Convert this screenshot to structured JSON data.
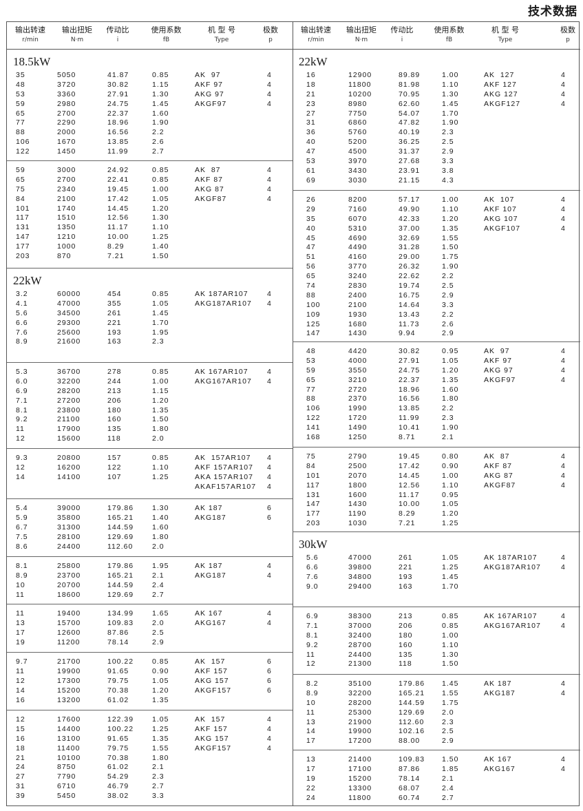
{
  "title": "技术数据",
  "header": [
    {
      "zh": "输出转速",
      "unit": "r/min"
    },
    {
      "zh": "输出扭矩",
      "unit": "N·m"
    },
    {
      "zh": "传动比",
      "unit": "i"
    },
    {
      "zh": "使用系数",
      "unit": "fB"
    },
    {
      "zh": "机 型 号",
      "unit": "Type"
    },
    {
      "zh": "极数",
      "unit": "p"
    }
  ],
  "left": [
    {
      "title": "18.5kW",
      "rows": [
        [
          "35",
          "5050",
          "41.87",
          "0.85"
        ],
        [
          "48",
          "3720",
          "30.82",
          "1.15"
        ],
        [
          "53",
          "3360",
          "27.91",
          "1.30"
        ],
        [
          "59",
          "2980",
          "24.75",
          "1.45"
        ],
        [
          "65",
          "2700",
          "22.37",
          "1.60"
        ],
        [
          "77",
          "2290",
          "18.96",
          "1.90"
        ],
        [
          "88",
          "2000",
          "16.56",
          "2.2"
        ],
        [
          "106",
          "1670",
          "13.85",
          "2.6"
        ],
        [
          "122",
          "1450",
          "11.99",
          "2.7"
        ]
      ],
      "types": [
        [
          "AK  97",
          "4"
        ],
        [
          "AKF 97",
          "4"
        ],
        [
          "AKG 97",
          "4"
        ],
        [
          "AKGF97",
          "4"
        ]
      ]
    },
    {
      "rows": [
        [
          "59",
          "3000",
          "24.92",
          "0.85"
        ],
        [
          "65",
          "2700",
          "22.41",
          "0.85"
        ],
        [
          "75",
          "2340",
          "19.45",
          "1.00"
        ],
        [
          "84",
          "2100",
          "17.42",
          "1.05"
        ],
        [
          "101",
          "1740",
          "14.45",
          "1.20"
        ],
        [
          "117",
          "1510",
          "12.56",
          "1.30"
        ],
        [
          "131",
          "1350",
          "11.17",
          "1.10"
        ],
        [
          "147",
          "1210",
          "10.00",
          "1.25"
        ],
        [
          "177",
          "1000",
          "8.29",
          "1.40"
        ],
        [
          "203",
          "870",
          "7.21",
          "1.50"
        ]
      ],
      "types": [
        [
          "AK  87",
          "4"
        ],
        [
          "AKF 87",
          "4"
        ],
        [
          "AKG 87",
          "4"
        ],
        [
          "AKGF87",
          "4"
        ]
      ]
    },
    {
      "title": "22kW",
      "rows": [
        [
          "3.2",
          "60000",
          "454",
          "0.85"
        ],
        [
          "4.1",
          "47000",
          "355",
          "1.05"
        ],
        [
          "5.6",
          "34500",
          "261",
          "1.45"
        ],
        [
          "6.6",
          "29300",
          "221",
          "1.70"
        ],
        [
          "7.6",
          "25600",
          "193",
          "1.95"
        ],
        [
          "8.9",
          "21600",
          "163",
          "2.3"
        ]
      ],
      "types": [
        [
          "AK 187AR107",
          "4"
        ],
        [
          "AKG187AR107",
          "4"
        ]
      ]
    },
    {
      "rows": [
        [
          "5.3",
          "36700",
          "278",
          "0.85"
        ],
        [
          "6.0",
          "32200",
          "244",
          "1.00"
        ],
        [
          "6.9",
          "28200",
          "213",
          "1.15"
        ],
        [
          "7.1",
          "27200",
          "206",
          "1.20"
        ],
        [
          "8.1",
          "23800",
          "180",
          "1.35"
        ],
        [
          "9.2",
          "21100",
          "160",
          "1.50"
        ],
        [
          "11",
          "17900",
          "135",
          "1.80"
        ],
        [
          "12",
          "15600",
          "118",
          "2.0"
        ]
      ],
      "types": [
        [
          "AK 167AR107",
          "4"
        ],
        [
          "AKG167AR107",
          "4"
        ]
      ]
    },
    {
      "rows": [
        [
          "9.3",
          "20800",
          "157",
          "0.85"
        ],
        [
          "12",
          "16200",
          "122",
          "1.10"
        ],
        [
          "14",
          "14100",
          "107",
          "1.25"
        ]
      ],
      "types": [
        [
          "AK  157AR107",
          "4"
        ],
        [
          "AKF 157AR107",
          "4"
        ],
        [
          "AKA 157AR107",
          "4"
        ],
        [
          "AKAF157AR107",
          "4"
        ]
      ]
    },
    {
      "rows": [
        [
          "5.4",
          "39000",
          "179.86",
          "1.30"
        ],
        [
          "5.9",
          "35800",
          "165.21",
          "1.40"
        ],
        [
          "6.7",
          "31300",
          "144.59",
          "1.60"
        ],
        [
          "7.5",
          "28100",
          "129.69",
          "1.80"
        ],
        [
          "8.6",
          "24400",
          "112.60",
          "2.0"
        ]
      ],
      "types": [
        [
          "AK 187",
          "6"
        ],
        [
          "AKG187",
          "6"
        ]
      ]
    },
    {
      "rows": [
        [
          "8.1",
          "25800",
          "179.86",
          "1.95"
        ],
        [
          "8.9",
          "23700",
          "165.21",
          "2.1"
        ],
        [
          "10",
          "20700",
          "144.59",
          "2.4"
        ],
        [
          "11",
          "18600",
          "129.69",
          "2.7"
        ]
      ],
      "types": [
        [
          "AK 187",
          "4"
        ],
        [
          "AKG187",
          "4"
        ]
      ]
    },
    {
      "rows": [
        [
          "11",
          "19400",
          "134.99",
          "1.65"
        ],
        [
          "13",
          "15700",
          "109.83",
          "2.0"
        ],
        [
          "17",
          "12600",
          "87.86",
          "2.5"
        ],
        [
          "19",
          "11200",
          "78.14",
          "2.9"
        ]
      ],
      "types": [
        [
          "AK 167",
          "4"
        ],
        [
          "AKG167",
          "4"
        ]
      ]
    },
    {
      "rows": [
        [
          "9.7",
          "21700",
          "100.22",
          "0.85"
        ],
        [
          "11",
          "19900",
          "91.65",
          "0.90"
        ],
        [
          "12",
          "17300",
          "79.75",
          "1.05"
        ],
        [
          "14",
          "15200",
          "70.38",
          "1.20"
        ],
        [
          "16",
          "13200",
          "61.02",
          "1.35"
        ]
      ],
      "types": [
        [
          "AK  157",
          "6"
        ],
        [
          "AKF 157",
          "6"
        ],
        [
          "AKG 157",
          "6"
        ],
        [
          "AKGF157",
          "6"
        ]
      ]
    },
    {
      "rows": [
        [
          "12",
          "17600",
          "122.39",
          "1.05"
        ],
        [
          "15",
          "14400",
          "100.22",
          "1.25"
        ],
        [
          "16",
          "13100",
          "91.65",
          "1.35"
        ],
        [
          "18",
          "11400",
          "79.75",
          "1.55"
        ],
        [
          "21",
          "10100",
          "70.38",
          "1.80"
        ],
        [
          "24",
          "8750",
          "61.02",
          "2.1"
        ],
        [
          "27",
          "7790",
          "54.29",
          "2.3"
        ],
        [
          "31",
          "6710",
          "46.79",
          "2.7"
        ],
        [
          "39",
          "5450",
          "38.02",
          "3.3"
        ]
      ],
      "types": [
        [
          "AK  157",
          "4"
        ],
        [
          "AKF 157",
          "4"
        ],
        [
          "AKG 157",
          "4"
        ],
        [
          "AKGF157",
          "4"
        ]
      ]
    }
  ],
  "right": [
    {
      "title": "22kW",
      "rows": [
        [
          "16",
          "12900",
          "89.89",
          "1.00"
        ],
        [
          "18",
          "11800",
          "81.98",
          "1.10"
        ],
        [
          "21",
          "10200",
          "70.95",
          "1.30"
        ],
        [
          "23",
          "8980",
          "62.60",
          "1.45"
        ],
        [
          "27",
          "7750",
          "54.07",
          "1.70"
        ],
        [
          "31",
          "6860",
          "47.82",
          "1.90"
        ],
        [
          "36",
          "5760",
          "40.19",
          "2.3"
        ],
        [
          "40",
          "5200",
          "36.25",
          "2.5"
        ],
        [
          "47",
          "4500",
          "31.37",
          "2.9"
        ],
        [
          "53",
          "3970",
          "27.68",
          "3.3"
        ],
        [
          "61",
          "3430",
          "23.91",
          "3.8"
        ],
        [
          "69",
          "3030",
          "21.15",
          "4.3"
        ]
      ],
      "types": [
        [
          "AK  127",
          "4"
        ],
        [
          "AKF 127",
          "4"
        ],
        [
          "AKG 127",
          "4"
        ],
        [
          "AKGF127",
          "4"
        ]
      ]
    },
    {
      "rows": [
        [
          "26",
          "8200",
          "57.17",
          "1.00"
        ],
        [
          "29",
          "7160",
          "49.90",
          "1.10"
        ],
        [
          "35",
          "6070",
          "42.33",
          "1.20"
        ],
        [
          "40",
          "5310",
          "37.00",
          "1.35"
        ],
        [
          "45",
          "4690",
          "32.69",
          "1.55"
        ],
        [
          "47",
          "4490",
          "31.28",
          "1.50"
        ],
        [
          "51",
          "4160",
          "29.00",
          "1.75"
        ],
        [
          "56",
          "3770",
          "26.32",
          "1.90"
        ],
        [
          "65",
          "3240",
          "22.62",
          "2.2"
        ],
        [
          "74",
          "2830",
          "19.74",
          "2.5"
        ],
        [
          "88",
          "2400",
          "16.75",
          "2.9"
        ],
        [
          "100",
          "2100",
          "14.64",
          "3.3"
        ],
        [
          "109",
          "1930",
          "13.43",
          "2.2"
        ],
        [
          "125",
          "1680",
          "11.73",
          "2.6"
        ],
        [
          "147",
          "1430",
          "9.94",
          "2.9"
        ]
      ],
      "types": [
        [
          "AK  107",
          "4"
        ],
        [
          "AKF 107",
          "4"
        ],
        [
          "AKG 107",
          "4"
        ],
        [
          "AKGF107",
          "4"
        ]
      ]
    },
    {
      "rows": [
        [
          "48",
          "4420",
          "30.82",
          "0.95"
        ],
        [
          "53",
          "4000",
          "27.91",
          "1.05"
        ],
        [
          "59",
          "3550",
          "24.75",
          "1.20"
        ],
        [
          "65",
          "3210",
          "22.37",
          "1.35"
        ],
        [
          "77",
          "2720",
          "18.96",
          "1.60"
        ],
        [
          "88",
          "2370",
          "16.56",
          "1.80"
        ],
        [
          "106",
          "1990",
          "13.85",
          "2.2"
        ],
        [
          "122",
          "1720",
          "11.99",
          "2.3"
        ],
        [
          "141",
          "1490",
          "10.41",
          "1.90"
        ],
        [
          "168",
          "1250",
          "8.71",
          "2.1"
        ]
      ],
      "types": [
        [
          "AK  97",
          "4"
        ],
        [
          "AKF 97",
          "4"
        ],
        [
          "AKG 97",
          "4"
        ],
        [
          "AKGF97",
          "4"
        ]
      ]
    },
    {
      "rows": [
        [
          "75",
          "2790",
          "19.45",
          "0.80"
        ],
        [
          "84",
          "2500",
          "17.42",
          "0.90"
        ],
        [
          "101",
          "2070",
          "14.45",
          "1.00"
        ],
        [
          "117",
          "1800",
          "12.56",
          "1.10"
        ],
        [
          "131",
          "1600",
          "11.17",
          "0.95"
        ],
        [
          "147",
          "1430",
          "10.00",
          "1.05"
        ],
        [
          "177",
          "1190",
          "8.29",
          "1.20"
        ],
        [
          "203",
          "1030",
          "7.21",
          "1.25"
        ]
      ],
      "types": [
        [
          "AK  87",
          "4"
        ],
        [
          "AKF 87",
          "4"
        ],
        [
          "AKG 87",
          "4"
        ],
        [
          "AKGF87",
          "4"
        ]
      ]
    },
    {
      "title": "30kW",
      "rows": [
        [
          "5.6",
          "47000",
          "261",
          "1.05"
        ],
        [
          "6.6",
          "39800",
          "221",
          "1.25"
        ],
        [
          "7.6",
          "34800",
          "193",
          "1.45"
        ],
        [
          "9.0",
          "29400",
          "163",
          "1.70"
        ]
      ],
      "types": [
        [
          "AK 187AR107",
          "4"
        ],
        [
          "AKG187AR107",
          "4"
        ]
      ]
    },
    {
      "rows": [
        [
          "6.9",
          "38300",
          "213",
          "0.85"
        ],
        [
          "7.1",
          "37000",
          "206",
          "0.85"
        ],
        [
          "8.1",
          "32400",
          "180",
          "1.00"
        ],
        [
          "9.2",
          "28700",
          "160",
          "1.10"
        ],
        [
          "11",
          "24400",
          "135",
          "1.30"
        ],
        [
          "12",
          "21300",
          "118",
          "1.50"
        ]
      ],
      "types": [
        [
          "AK 167AR107",
          "4"
        ],
        [
          "AKG167AR107",
          "4"
        ]
      ]
    },
    {
      "rows": [
        [
          "8.2",
          "35100",
          "179.86",
          "1.45"
        ],
        [
          "8.9",
          "32200",
          "165.21",
          "1.55"
        ],
        [
          "10",
          "28200",
          "144.59",
          "1.75"
        ],
        [
          "11",
          "25300",
          "129.69",
          "2.0"
        ],
        [
          "13",
          "21900",
          "112.60",
          "2.3"
        ],
        [
          "14",
          "19900",
          "102.16",
          "2.5"
        ],
        [
          "17",
          "17200",
          "88.00",
          "2.9"
        ]
      ],
      "types": [
        [
          "AK 187",
          "4"
        ],
        [
          "AKG187",
          "4"
        ]
      ]
    },
    {
      "rows": [
        [
          "13",
          "21400",
          "109.83",
          "1.50"
        ],
        [
          "17",
          "17100",
          "87.86",
          "1.85"
        ],
        [
          "19",
          "15200",
          "78.14",
          "2.1"
        ],
        [
          "22",
          "13300",
          "68.07",
          "2.4"
        ],
        [
          "24",
          "11800",
          "60.74",
          "2.7"
        ]
      ],
      "types": [
        [
          "AK 167",
          "4"
        ],
        [
          "AKG167",
          "4"
        ]
      ]
    }
  ]
}
